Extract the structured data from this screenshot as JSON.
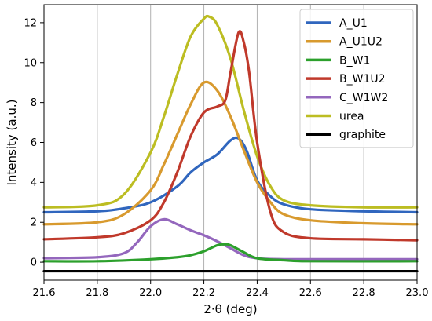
{
  "chart_data": {
    "type": "line",
    "title": "",
    "xlabel": "2·θ (deg)",
    "ylabel": "Intensity (a.u.)",
    "xlim": [
      21.6,
      23.0
    ],
    "ylim": [
      -0.9,
      12.9
    ],
    "x_ticks": [
      "21.6",
      "21.8",
      "22.0",
      "22.2",
      "22.4",
      "22.6",
      "22.8",
      "23.0"
    ],
    "y_ticks": [
      "0",
      "2",
      "4",
      "6",
      "8",
      "10",
      "12"
    ],
    "grid": "vertical",
    "legend_position": "top-right",
    "series": [
      {
        "name": "A_U1",
        "color": "#3066be",
        "x": [
          21.6,
          21.8,
          21.9,
          22.0,
          22.1,
          22.15,
          22.2,
          22.25,
          22.3,
          22.33,
          22.36,
          22.4,
          22.45,
          22.5,
          22.6,
          22.8,
          23.0
        ],
        "y": [
          2.5,
          2.55,
          2.7,
          3.0,
          3.8,
          4.5,
          5.0,
          5.4,
          6.1,
          6.2,
          5.6,
          4.1,
          3.3,
          2.9,
          2.65,
          2.55,
          2.5
        ]
      },
      {
        "name": "A_U1U2",
        "color": "#d89a2e",
        "x": [
          21.6,
          21.8,
          21.9,
          22.0,
          22.05,
          22.1,
          22.15,
          22.2,
          22.25,
          22.3,
          22.35,
          22.4,
          22.45,
          22.5,
          22.6,
          22.8,
          23.0
        ],
        "y": [
          1.9,
          2.0,
          2.4,
          3.6,
          4.9,
          6.4,
          7.9,
          9.0,
          8.6,
          7.3,
          5.6,
          4.0,
          3.0,
          2.4,
          2.1,
          1.95,
          1.9
        ]
      },
      {
        "name": "B_W1",
        "color": "#2ca02c",
        "x": [
          21.6,
          21.8,
          22.0,
          22.1,
          22.15,
          22.2,
          22.25,
          22.28,
          22.3,
          22.35,
          22.4,
          22.5,
          22.6,
          23.0
        ],
        "y": [
          0.05,
          0.05,
          0.15,
          0.25,
          0.35,
          0.55,
          0.85,
          0.9,
          0.85,
          0.5,
          0.2,
          0.1,
          0.05,
          0.05
        ]
      },
      {
        "name": "B_W1U2",
        "color": "#c0392b",
        "x": [
          21.6,
          21.8,
          21.9,
          22.0,
          22.05,
          22.1,
          22.15,
          22.2,
          22.25,
          22.28,
          22.3,
          22.33,
          22.35,
          22.37,
          22.4,
          22.45,
          22.5,
          22.6,
          22.8,
          23.0
        ],
        "y": [
          1.15,
          1.25,
          1.45,
          2.1,
          3.0,
          4.5,
          6.3,
          7.5,
          7.8,
          8.1,
          9.5,
          11.5,
          11.0,
          9.5,
          6.0,
          2.5,
          1.5,
          1.2,
          1.15,
          1.1
        ]
      },
      {
        "name": "C_W1W2",
        "color": "#9467bd",
        "x": [
          21.6,
          21.8,
          21.9,
          21.95,
          22.0,
          22.05,
          22.1,
          22.15,
          22.2,
          22.25,
          22.3,
          22.35,
          22.4,
          22.5,
          23.0
        ],
        "y": [
          0.2,
          0.25,
          0.45,
          1.0,
          1.8,
          2.15,
          1.9,
          1.6,
          1.35,
          1.05,
          0.7,
          0.35,
          0.2,
          0.15,
          0.15
        ]
      },
      {
        "name": "urea",
        "color": "#bcbd22",
        "x": [
          21.6,
          21.8,
          21.9,
          22.0,
          22.05,
          22.1,
          22.15,
          22.2,
          22.22,
          22.25,
          22.3,
          22.35,
          22.4,
          22.45,
          22.5,
          22.6,
          22.8,
          23.0
        ],
        "y": [
          2.75,
          2.85,
          3.4,
          5.5,
          7.3,
          9.4,
          11.3,
          12.2,
          12.3,
          11.9,
          10.2,
          7.6,
          5.3,
          3.8,
          3.1,
          2.85,
          2.75,
          2.75
        ]
      },
      {
        "name": "graphite",
        "color": "#000000",
        "x": [
          21.6,
          23.0
        ],
        "y": [
          -0.45,
          -0.45
        ]
      }
    ]
  }
}
